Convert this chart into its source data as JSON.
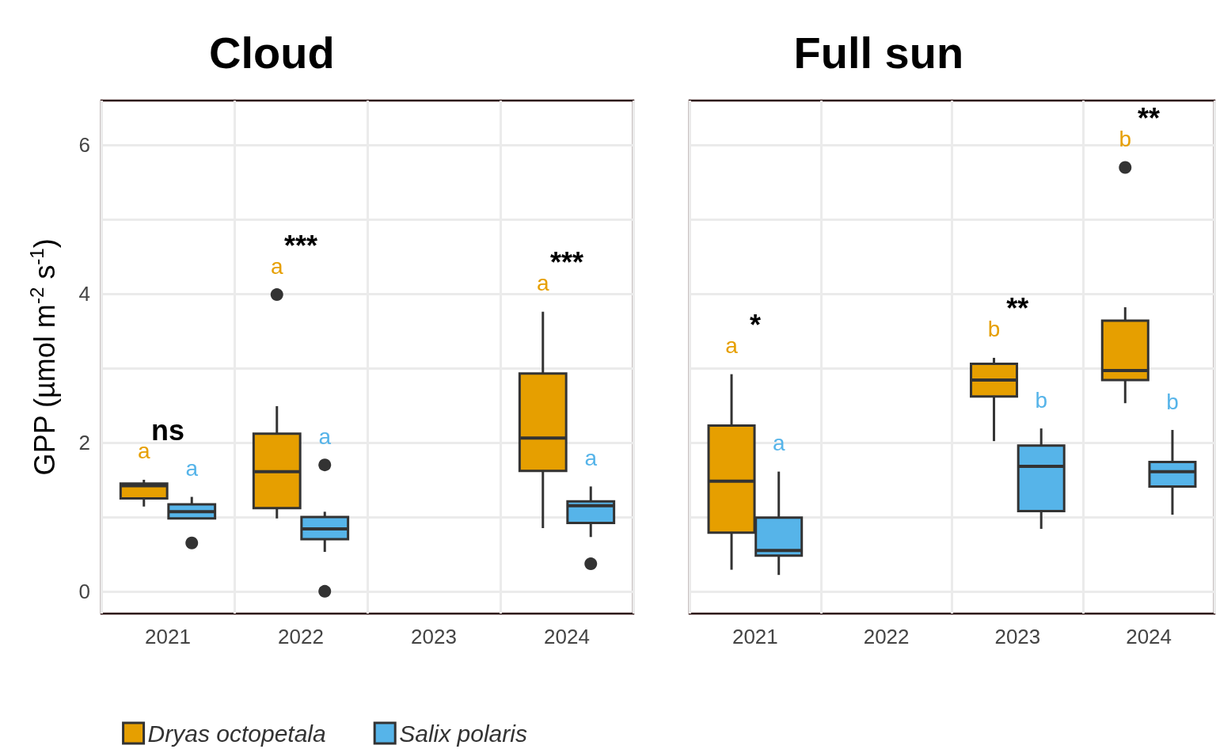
{
  "chart_data": [
    {
      "type": "box",
      "title": "Cloud",
      "ylabel": "GPP (µmol m$^{-2}$ s$^{-1}$)",
      "categories": [
        "2021",
        "2022",
        "2023",
        "2024"
      ],
      "ylim": [
        -0.3,
        6.6
      ],
      "yticks": [
        0,
        {
          "value": 1,
          "label": null
        },
        2,
        {
          "value": 3,
          "label": null
        },
        4,
        {
          "value": 5,
          "label": null
        },
        6
      ],
      "grid": true,
      "legend": "bottom",
      "series": [
        {
          "name": "Dryas octopetala",
          "color": "#e69f00",
          "value_labels": [
            "a",
            "a",
            null,
            "a"
          ],
          "boxes": [
            {
              "low": 1.14,
              "q1": 1.25,
              "median": 1.42,
              "q3": 1.45,
              "high": 1.5
            },
            {
              "low": 0.98,
              "q1": 1.12,
              "median": 1.61,
              "q3": 2.12,
              "high": 2.49,
              "outliers": [
                3.99
              ]
            },
            null,
            {
              "low": 0.85,
              "q1": 1.62,
              "median": 2.06,
              "q3": 2.93,
              "high": 3.76
            }
          ]
        },
        {
          "name": "Salix polaris",
          "color": "#56b4e9",
          "value_labels": [
            "a",
            "a",
            null,
            "a"
          ],
          "boxes": [
            {
              "low": 0.98,
              "q1": 0.98,
              "median": 1.07,
              "q3": 1.17,
              "high": 1.27,
              "outliers": [
                0.65
              ]
            },
            {
              "low": 0.53,
              "q1": 0.7,
              "median": 0.84,
              "q3": 1.0,
              "high": 1.07,
              "outliers": [
                1.7,
                0.0
              ]
            },
            null,
            {
              "low": 0.73,
              "q1": 0.92,
              "median": 1.15,
              "q3": 1.21,
              "high": 1.41,
              "outliers": [
                0.37
              ]
            }
          ]
        }
      ],
      "annotations": [
        "ns",
        "***",
        "***"
      ]
    },
    {
      "type": "box",
      "title": "Full sun",
      "categories": [
        "2021",
        "2022",
        "2023",
        "2024"
      ],
      "ylim": [
        -0.3,
        6.6
      ],
      "yticks": [
        0,
        {
          "value": 1,
          "label": null
        },
        2,
        {
          "value": 3,
          "label": null
        },
        4,
        {
          "value": 5,
          "label": null
        },
        6
      ],
      "grid": true,
      "tick_labels": "x",
      "series": [
        {
          "color": "#e69f00",
          "value_labels": [
            "a",
            null,
            "b",
            "b"
          ],
          "boxes": [
            {
              "low": 0.29,
              "q1": 0.79,
              "median": 1.48,
              "q3": 2.23,
              "high": 2.92
            },
            null,
            {
              "low": 2.02,
              "q1": 2.62,
              "median": 2.84,
              "q3": 3.06,
              "high": 3.14
            },
            {
              "low": 2.53,
              "q1": 2.84,
              "median": 2.97,
              "q3": 3.64,
              "high": 3.82,
              "outliers": [
                5.7
              ]
            }
          ]
        },
        {
          "color": "#56b4e9",
          "value_labels": [
            "a",
            null,
            "b",
            "b"
          ],
          "boxes": [
            {
              "low": 0.22,
              "q1": 0.48,
              "median": 0.55,
              "q3": 0.99,
              "high": 1.61
            },
            null,
            {
              "low": 0.84,
              "q1": 1.08,
              "median": 1.68,
              "q3": 1.96,
              "high": 2.19
            },
            {
              "low": 1.03,
              "q1": 1.41,
              "median": 1.61,
              "q3": 1.74,
              "high": 2.17
            }
          ]
        }
      ],
      "annotations": [
        "*",
        "**",
        "**"
      ]
    }
  ]
}
